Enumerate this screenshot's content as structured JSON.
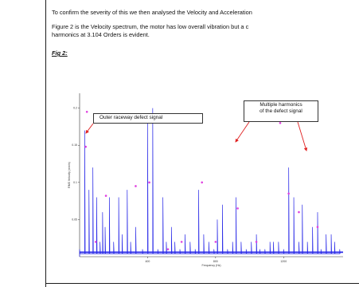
{
  "document": {
    "para1": "To confirm the severity of this we then analysed the Velocity and Acceleration",
    "para2_line1": "Figure 2 is the Velocity spectrum, the motor has low overall vibration but a c",
    "para2_line2": "harmonics at 3.104 Orders is evident.",
    "figure_label": "Fig 2:"
  },
  "annotations": {
    "outer_raceway": "Outer raceway defect signal",
    "multiple_harmonics_line1": "Multiple harmonics",
    "multiple_harmonics_line2": "of the defect signal"
  },
  "colors": {
    "spectrum": "#2a2ae8",
    "markers": "#e040e0",
    "arrow": "#e02020",
    "axis": "#333333"
  },
  "chart_data": {
    "type": "line",
    "title": "",
    "xlabel": "Frequency (Hz)",
    "ylabel": "RMS Velocity (mm/s)",
    "xlim": [
      0,
      1550
    ],
    "ylim": [
      0,
      0.22
    ],
    "x_ticks": [
      400,
      800,
      1200
    ],
    "y_ticks": [
      0.05,
      0.1,
      0.15,
      0.2
    ],
    "x_tick_labels": [
      "400",
      "800",
      "1200"
    ],
    "y_tick_labels": [
      "0.05",
      "0.1",
      "0.15",
      "0.2"
    ],
    "series": [
      {
        "x": [
          0,
          30,
          55,
          78,
          100,
          120,
          135,
          150,
          175,
          200,
          230,
          250,
          280,
          300,
          330,
          370,
          400,
          430,
          460,
          490,
          510,
          540,
          560,
          590,
          620,
          650,
          680,
          700,
          730,
          760,
          790,
          810,
          840,
          870,
          900,
          920,
          950,
          980,
          1010,
          1040,
          1060,
          1090,
          1120,
          1140,
          1170,
          1200,
          1230,
          1260,
          1290,
          1310,
          1340,
          1370,
          1400,
          1420,
          1450,
          1480,
          1500,
          1530
        ],
        "y": [
          0.01,
          0.17,
          0.09,
          0.12,
          0.08,
          0.02,
          0.06,
          0.04,
          0.08,
          0.02,
          0.08,
          0.03,
          0.09,
          0.02,
          0.04,
          0.01,
          0.18,
          0.2,
          0.01,
          0.08,
          0.02,
          0.04,
          0.02,
          0.01,
          0.03,
          0.02,
          0.01,
          0.09,
          0.03,
          0.02,
          0.01,
          0.05,
          0.07,
          0.01,
          0.02,
          0.08,
          0.02,
          0.01,
          0.02,
          0.03,
          0.01,
          0.01,
          0.02,
          0.02,
          0.02,
          0.01,
          0.12,
          0.08,
          0.02,
          0.07,
          0.02,
          0.04,
          0.06,
          0.01,
          0.03,
          0.03,
          0.02,
          0.01
        ]
      }
    ],
    "markers": [
      {
        "x": 36,
        "y": 0.148
      },
      {
        "x": 43,
        "y": 0.195
      },
      {
        "x": 95,
        "y": 0.02
      },
      {
        "x": 155,
        "y": 0.082
      },
      {
        "x": 330,
        "y": 0.095
      },
      {
        "x": 410,
        "y": 0.1
      },
      {
        "x": 520,
        "y": 0.01
      },
      {
        "x": 600,
        "y": 0.02
      },
      {
        "x": 720,
        "y": 0.1
      },
      {
        "x": 800,
        "y": 0.02
      },
      {
        "x": 930,
        "y": 0.065
      },
      {
        "x": 1040,
        "y": 0.02
      },
      {
        "x": 1180,
        "y": 0.18
      },
      {
        "x": 1230,
        "y": 0.085
      },
      {
        "x": 1290,
        "y": 0.06
      },
      {
        "x": 1400,
        "y": 0.04
      }
    ],
    "grid": false
  }
}
